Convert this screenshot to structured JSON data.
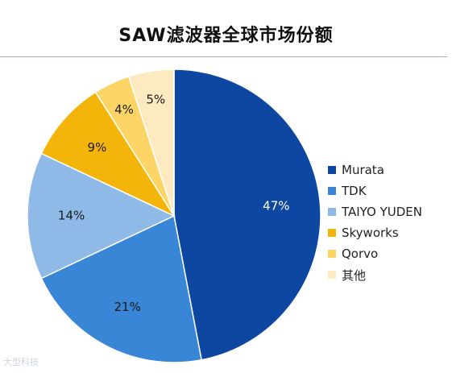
{
  "header": {
    "title": "SAW滤波器全球市场份额"
  },
  "watermark": "大型科技",
  "chart_data": {
    "type": "pie",
    "title": "SAW滤波器全球市场份额",
    "categories": [
      "Murata",
      "TDK",
      "TAIYO YUDEN",
      "Skyworks",
      "Qorvo",
      "其他"
    ],
    "values": [
      47,
      21,
      14,
      9,
      4,
      5
    ],
    "labels": [
      "47%",
      "21%",
      "14%",
      "9%",
      "4%",
      "5%"
    ],
    "colors": [
      "#0d47a1",
      "#3a86d6",
      "#8fb9e6",
      "#f4b50b",
      "#fdd567",
      "#fdeac0"
    ],
    "label_colors": [
      "#ffffff",
      "#1a1a1a",
      "#1a1a1a",
      "#1a1a1a",
      "#1a1a1a",
      "#1a1a1a"
    ],
    "start_angle": "12 o'clock",
    "direction": "clockwise",
    "legend_position": "right"
  }
}
